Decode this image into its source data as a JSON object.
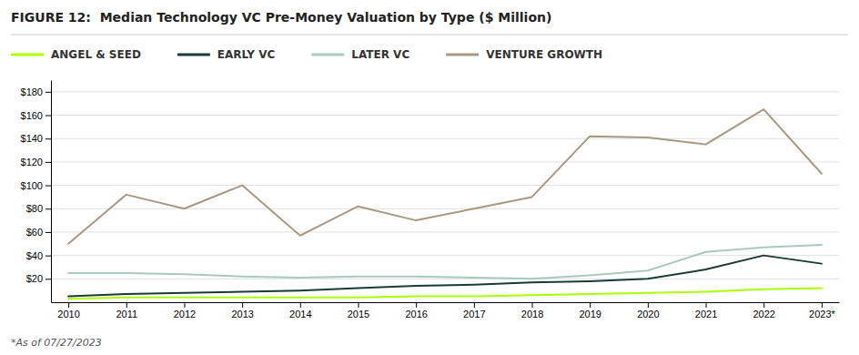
{
  "chart_data": {
    "type": "line",
    "title": "FIGURE 12:  Median Technology VC Pre-Money Valuation by Type ($ Million)",
    "annotations": [
      "*As of 07/27/2023"
    ],
    "x": [
      2010,
      2011,
      2012,
      2013,
      2014,
      2015,
      2016,
      2017,
      2018,
      2019,
      2020,
      2021,
      2022,
      2023
    ],
    "xlim": [
      2009.7,
      2023.3
    ],
    "xticks": [
      2010,
      2011,
      2012,
      2013,
      2014,
      2015,
      2016,
      2017,
      2018,
      2019,
      2020,
      2021,
      2022,
      {
        "value": 2023,
        "label": "2023*"
      }
    ],
    "series": [
      {
        "name": "ANGEL & SEED",
        "color": "#aaff00",
        "values": [
          3,
          4,
          4,
          4,
          4,
          4,
          5,
          5,
          6,
          7,
          8,
          9,
          11,
          12
        ]
      },
      {
        "name": "EARLY VC",
        "color": "#1b3a35",
        "values": [
          5,
          7,
          8,
          9,
          10,
          12,
          14,
          15,
          17,
          18,
          20,
          28,
          40,
          33
        ]
      },
      {
        "name": "LATER VC",
        "color": "#a8c8c0",
        "values": [
          25,
          25,
          24,
          22,
          21,
          22,
          22,
          21,
          20,
          23,
          27,
          43,
          47,
          49
        ]
      },
      {
        "name": "VENTURE GROWTH",
        "color": "#a89880",
        "values": [
          50,
          92,
          80,
          100,
          57,
          82,
          70,
          80,
          90,
          142,
          141,
          135,
          165,
          110
        ]
      }
    ],
    "ylim": [
      0,
      190
    ],
    "yticks": [
      {
        "value": 20,
        "label": "$20"
      },
      {
        "value": 40,
        "label": "$40"
      },
      {
        "value": 60,
        "label": "$60"
      },
      {
        "value": 80,
        "label": "$80"
      },
      {
        "value": 100,
        "label": "$100"
      },
      {
        "value": 120,
        "label": "$120"
      },
      {
        "value": 140,
        "label": "$140"
      },
      {
        "value": 160,
        "label": "$160"
      },
      {
        "value": 180,
        "label": "$180"
      }
    ],
    "grid": true,
    "legend": "top"
  }
}
